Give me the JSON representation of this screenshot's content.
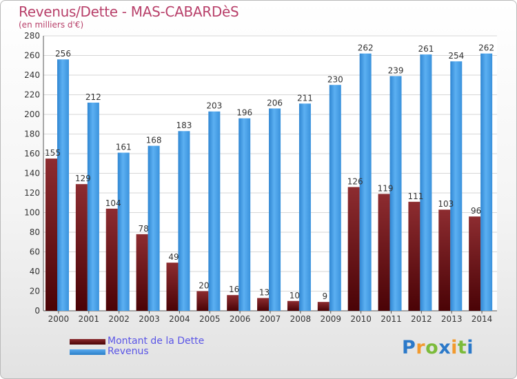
{
  "header": {
    "title": "Revenus/Dette - MAS-CABARDèS",
    "subtitle": "(en milliers d'€)"
  },
  "legend": {
    "items": [
      {
        "label": "Montant de la Dette",
        "color": "#6b1418"
      },
      {
        "label": "Revenus",
        "color": "#3a94dd"
      }
    ]
  },
  "logo": {
    "letters": [
      {
        "ch": "P",
        "color": "#2b79c9"
      },
      {
        "ch": "r",
        "color": "#f29a2e"
      },
      {
        "ch": "o",
        "color": "#7cbb3b"
      },
      {
        "ch": "x",
        "color": "#2b79c9"
      },
      {
        "ch": "i",
        "color": "#f29a2e"
      },
      {
        "ch": "t",
        "color": "#7cbb3b"
      },
      {
        "ch": "i",
        "color": "#2b79c9"
      }
    ]
  },
  "chart_data": {
    "type": "bar",
    "title": "Revenus/Dette - MAS-CABARDèS",
    "subtitle": "(en milliers d'€)",
    "categories": [
      "2000",
      "2001",
      "2002",
      "2003",
      "2004",
      "2005",
      "2006",
      "2007",
      "2008",
      "2009",
      "2010",
      "2011",
      "2012",
      "2013",
      "2014"
    ],
    "series": [
      {
        "name": "Montant de la Dette",
        "values": [
          155,
          129,
          104,
          78,
          49,
          20,
          16,
          13,
          10,
          9,
          126,
          119,
          111,
          103,
          96
        ],
        "color": "#6b1418"
      },
      {
        "name": "Revenus",
        "values": [
          256,
          212,
          161,
          168,
          183,
          203,
          196,
          206,
          211,
          230,
          262,
          239,
          261,
          254,
          262
        ],
        "color": "#3a94dd"
      }
    ],
    "ylim": [
      0,
      280
    ],
    "yticks": [
      0,
      20,
      40,
      60,
      80,
      100,
      120,
      140,
      160,
      180,
      200,
      220,
      240,
      260,
      280
    ],
    "grid": true,
    "legend_position": "bottom-left"
  }
}
